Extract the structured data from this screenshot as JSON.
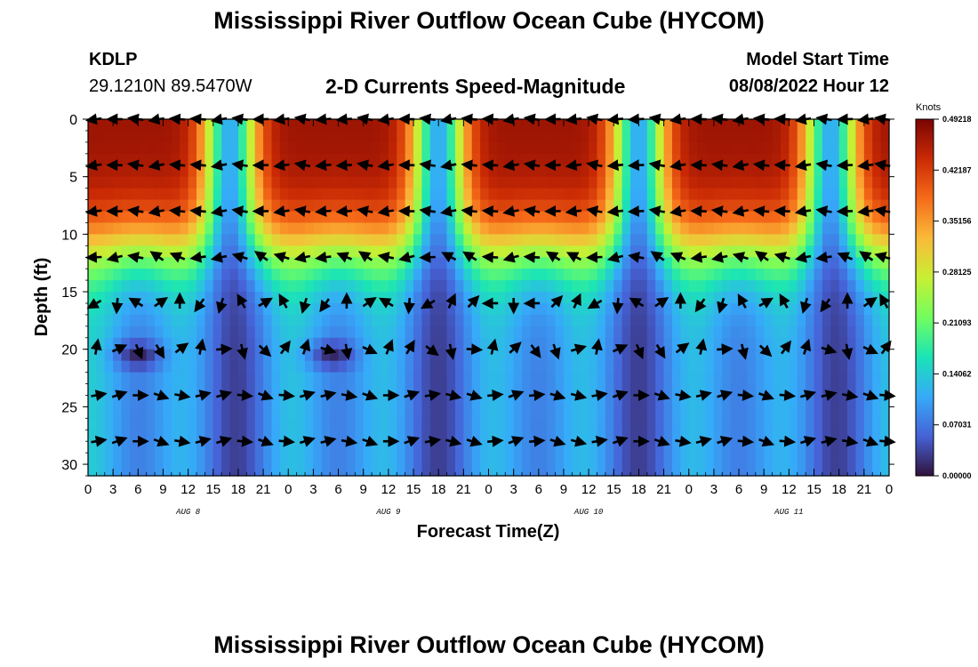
{
  "header": {
    "title": "Mississippi River Outflow Ocean Cube (HYCOM)",
    "station_id": "KDLP",
    "station_coords": "29.1210N  89.5470W",
    "subtitle": "2-D Currents Speed-Magnitude",
    "model_start_label": "Model Start Time",
    "model_start_value": "08/08/2022 Hour 12"
  },
  "footer": {
    "title": "Mississippi River Outflow Ocean Cube (HYCOM)"
  },
  "chart_data": {
    "type": "heatmap",
    "title": "2-D Currents Speed-Magnitude",
    "xlabel": "Forecast Time(Z)",
    "ylabel": "Depth (ft)",
    "x_ticks": [
      "0",
      "3",
      "6",
      "9",
      "12",
      "15",
      "18",
      "21",
      "0",
      "3",
      "6",
      "9",
      "12",
      "15",
      "18",
      "21",
      "0",
      "3",
      "6",
      "9",
      "12",
      "15",
      "18",
      "21",
      "0",
      "3",
      "6",
      "9",
      "12",
      "15",
      "18",
      "21",
      "0"
    ],
    "x_hours_range": [
      0,
      96
    ],
    "day_labels": [
      {
        "label": "AUG 8",
        "hour": 12
      },
      {
        "label": "AUG 9",
        "hour": 36
      },
      {
        "label": "AUG 10",
        "hour": 60
      },
      {
        "label": "AUG 11",
        "hour": 84
      }
    ],
    "y_ticks": [
      0,
      5,
      10,
      15,
      20,
      25,
      30
    ],
    "ylim": [
      0,
      31
    ],
    "y_inverted": true,
    "colorbar": {
      "unit_label": "Knots",
      "tick_labels": [
        "0.49218",
        "0.42187",
        "0.35156",
        "0.28125",
        "0.21093",
        "0.14062",
        "0.07031",
        "0.00000"
      ],
      "min": 0,
      "max": 0.49218,
      "colors": [
        "#30123b",
        "#4662d7",
        "#36aaf9",
        "#1ae4b6",
        "#72fe5e",
        "#c8ef34",
        "#faba39",
        "#f66b19",
        "#ca2a04",
        "#7a0403"
      ]
    },
    "depths": [
      0,
      4,
      8,
      12,
      16,
      20,
      24,
      28
    ],
    "vector_times": [
      1,
      3.5,
      6,
      8.5,
      11,
      13.5,
      16,
      18.5,
      21,
      23.5,
      26,
      28.5,
      31,
      33.5,
      36,
      38.5,
      41,
      43.5,
      46,
      48.5,
      51,
      53.5,
      56,
      58.5,
      61,
      63.5,
      66,
      68.5,
      71,
      73.5,
      76,
      78.5,
      81,
      83.5,
      86,
      88.5,
      91,
      93.5,
      95.5
    ],
    "speed_surface_peaks_hours": [
      5,
      30,
      55,
      82
    ],
    "speed_surface_minima_hours": [
      17,
      42,
      66,
      89
    ],
    "speed_range_knots": [
      0.0,
      0.49218
    ]
  }
}
